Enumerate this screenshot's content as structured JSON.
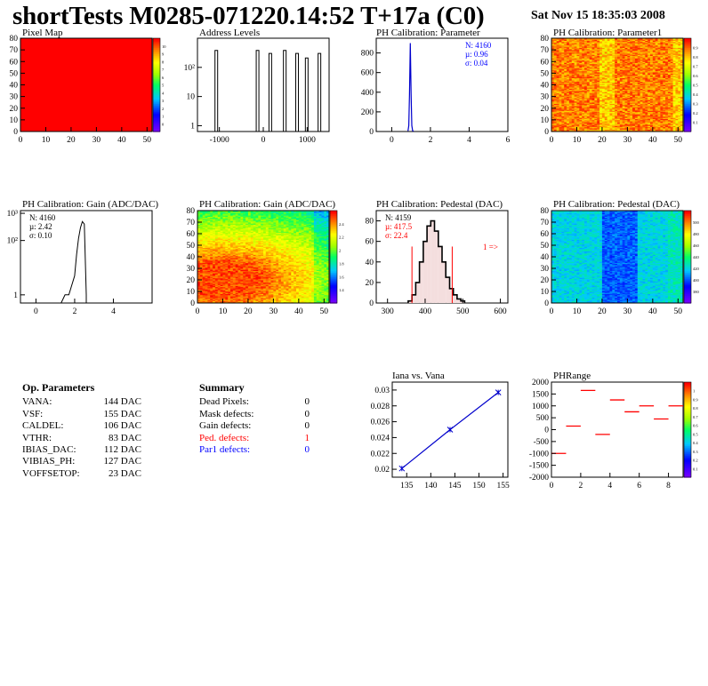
{
  "header": {
    "title": "shortTests M0285-071220.14:52 T+17a (C0)",
    "date": "Sat Nov 15 18:35:03 2008"
  },
  "colors": {
    "stats_blue": "#0000ff",
    "stats_red": "#ff0000",
    "line_blue": "#0000cc",
    "red_map": "#ff0000"
  },
  "chart_data": [
    {
      "id": "pixel_map",
      "type": "heatmap",
      "title": "Pixel Map",
      "xlim": [
        0,
        52
      ],
      "ylim": [
        0,
        80
      ],
      "xticks": [
        "0",
        "10",
        "20",
        "30",
        "40",
        "50"
      ],
      "yticks": [
        "0",
        "10",
        "20",
        "30",
        "40",
        "50",
        "60",
        "70",
        "80"
      ],
      "zlim": [
        0,
        10
      ],
      "zticks": [
        "0",
        "1",
        "2",
        "3",
        "4",
        "5",
        "6",
        "7",
        "8",
        "9",
        "10"
      ],
      "uniform_value": 10
    },
    {
      "id": "address_levels",
      "type": "bar",
      "title": "Address Levels",
      "xlim": [
        -1500,
        1500
      ],
      "log_y": true,
      "xticks": [
        "-1000",
        "0",
        "1000"
      ],
      "ytick_labels": [
        "1",
        "10",
        "10²"
      ],
      "peaks_x": [
        -1060,
        -120,
        170,
        500,
        780,
        1000,
        1290
      ],
      "peak_heights": [
        380,
        380,
        300,
        380,
        300,
        210,
        300
      ]
    },
    {
      "id": "ph_calibration_parameter",
      "type": "bar",
      "title": "PH Calibration: Parameter",
      "xlim": [
        -0.8,
        6
      ],
      "ylim": [
        0,
        950
      ],
      "xticks": [
        "0",
        "2",
        "4",
        "6"
      ],
      "yticks": [
        "0",
        "200",
        "400",
        "600",
        "800"
      ],
      "stats": {
        "n": "N: 4160",
        "mean": "µ: 0.96",
        "sigma": "σ: 0.04"
      },
      "x": [
        0.84,
        0.88,
        0.92,
        0.96,
        1.0,
        1.04,
        1.08,
        1.12
      ],
      "values": [
        5,
        60,
        380,
        900,
        380,
        60,
        10,
        2
      ]
    },
    {
      "id": "ph_calibration_parameter1",
      "type": "heatmap",
      "title": "PH Calibration: Parameter1",
      "xlim": [
        0,
        52
      ],
      "ylim": [
        0,
        80
      ],
      "xticks": [
        "0",
        "10",
        "20",
        "30",
        "40",
        "50"
      ],
      "yticks": [
        "0",
        "10",
        "20",
        "30",
        "40",
        "50",
        "60",
        "70",
        "80"
      ],
      "zticks": [
        "0.1",
        "0.2",
        "0.3",
        "0.4",
        "0.5",
        "0.6",
        "0.7",
        "0.8",
        "0.9"
      ]
    },
    {
      "id": "ph_calibration_gain_hist",
      "type": "bar",
      "title": "PH Calibration: Gain (ADC/DAC)",
      "xlim": [
        -0.8,
        6
      ],
      "log_y": true,
      "xticks": [
        "0",
        "2",
        "4"
      ],
      "ytick_labels": [
        "1",
        "10²",
        "10³"
      ],
      "stats": {
        "n": "N: 4160",
        "mean": "µ: 2.42",
        "sigma": "σ: 0.10"
      },
      "x": [
        1.5,
        1.7,
        2.0,
        2.1,
        2.2,
        2.3,
        2.4,
        2.5,
        2.6
      ],
      "values": [
        1,
        1,
        5,
        30,
        120,
        300,
        500,
        400,
        1
      ]
    },
    {
      "id": "ph_calibration_gain_map",
      "type": "heatmap",
      "title": "PH Calibration: Gain (ADC/DAC)",
      "xlim": [
        0,
        52
      ],
      "ylim": [
        0,
        80
      ],
      "xticks": [
        "0",
        "10",
        "20",
        "30",
        "40",
        "50"
      ],
      "yticks": [
        "0",
        "10",
        "20",
        "30",
        "40",
        "50",
        "60",
        "70",
        "80"
      ],
      "zticks": [
        "1.4",
        "1.6",
        "1.8",
        "2",
        "2.2",
        "2.4"
      ]
    },
    {
      "id": "ph_calibration_pedestal_hist",
      "type": "bar",
      "title": "PH Calibration: Pedestal (DAC)",
      "xlim": [
        270,
        620
      ],
      "ylim": [
        0,
        90
      ],
      "xticks": [
        "300",
        "400",
        "500",
        "600"
      ],
      "yticks": [
        "0",
        "20",
        "40",
        "60",
        "80"
      ],
      "stats": {
        "n": "N: 4159",
        "mean": "µ: 417.5",
        "sigma": "σ: 22.4"
      },
      "overflow_label": "1 =>",
      "x": [
        360,
        370,
        380,
        390,
        400,
        410,
        420,
        430,
        440,
        450,
        460,
        470,
        480,
        490,
        500
      ],
      "values": [
        2,
        8,
        20,
        40,
        60,
        75,
        80,
        70,
        55,
        40,
        25,
        14,
        8,
        4,
        2
      ]
    },
    {
      "id": "ph_calibration_pedestal_map",
      "type": "heatmap",
      "title": "PH Calibration: Pedestal (DAC)",
      "xlim": [
        0,
        52
      ],
      "ylim": [
        0,
        80
      ],
      "xticks": [
        "0",
        "10",
        "20",
        "30",
        "40",
        "50"
      ],
      "yticks": [
        "0",
        "10",
        "20",
        "30",
        "40",
        "50",
        "60",
        "70",
        "80"
      ],
      "zticks": [
        "380",
        "400",
        "420",
        "440",
        "460",
        "480",
        "500"
      ]
    },
    {
      "id": "iana_vs_vana",
      "type": "line",
      "title": "Iana vs. Vana",
      "xlim": [
        132,
        156
      ],
      "ylim": [
        0.019,
        0.031
      ],
      "xticks": [
        "135",
        "140",
        "145",
        "150",
        "155"
      ],
      "yticks": [
        "0.02",
        "0.022",
        "0.024",
        "0.026",
        "0.028",
        "0.03"
      ],
      "x": [
        134,
        144,
        154
      ],
      "y": [
        0.0201,
        0.025,
        0.0297
      ]
    },
    {
      "id": "ph_range",
      "type": "bar",
      "title": "PHRange",
      "xlim": [
        0,
        9
      ],
      "ylim": [
        -2000,
        2000
      ],
      "xticks": [
        "0",
        "2",
        "4",
        "6",
        "8"
      ],
      "yticks": [
        "-2000",
        "-1500",
        "-1000",
        "-500",
        "0",
        "500",
        "1000",
        "1500",
        "2000"
      ],
      "zticks": [
        "0.1",
        "0.2",
        "0.3",
        "0.4",
        "0.5",
        "0.6",
        "0.7",
        "0.8",
        "0.9",
        "1"
      ],
      "x": [
        0,
        1,
        2,
        3,
        4,
        5,
        6,
        7,
        8
      ],
      "values": [
        -1000,
        150,
        1650,
        -200,
        1250,
        750,
        1000,
        450,
        1000
      ]
    }
  ],
  "op_parameters": {
    "title": "Op. Parameters",
    "rows": [
      {
        "name": "VANA:",
        "value": "144 DAC"
      },
      {
        "name": "VSF:",
        "value": "155 DAC"
      },
      {
        "name": "CALDEL:",
        "value": "106 DAC"
      },
      {
        "name": "VTHR:",
        "value": "83 DAC"
      },
      {
        "name": "IBIAS_DAC:",
        "value": "112 DAC"
      },
      {
        "name": "VIBIAS_PH:",
        "value": "127 DAC"
      },
      {
        "name": "VOFFSETOP:",
        "value": "23 DAC"
      }
    ]
  },
  "summary": {
    "title": "Summary",
    "rows": [
      {
        "name": "Dead Pixels:",
        "value": "0",
        "color": "#000000"
      },
      {
        "name": "Mask defects:",
        "value": "0",
        "color": "#000000"
      },
      {
        "name": "Gain defects:",
        "value": "0",
        "color": "#000000"
      },
      {
        "name": "Ped. defects:",
        "value": "1",
        "color": "#ff0000"
      },
      {
        "name": "Par1 defects:",
        "value": "0",
        "color": "#0000ff"
      }
    ]
  }
}
